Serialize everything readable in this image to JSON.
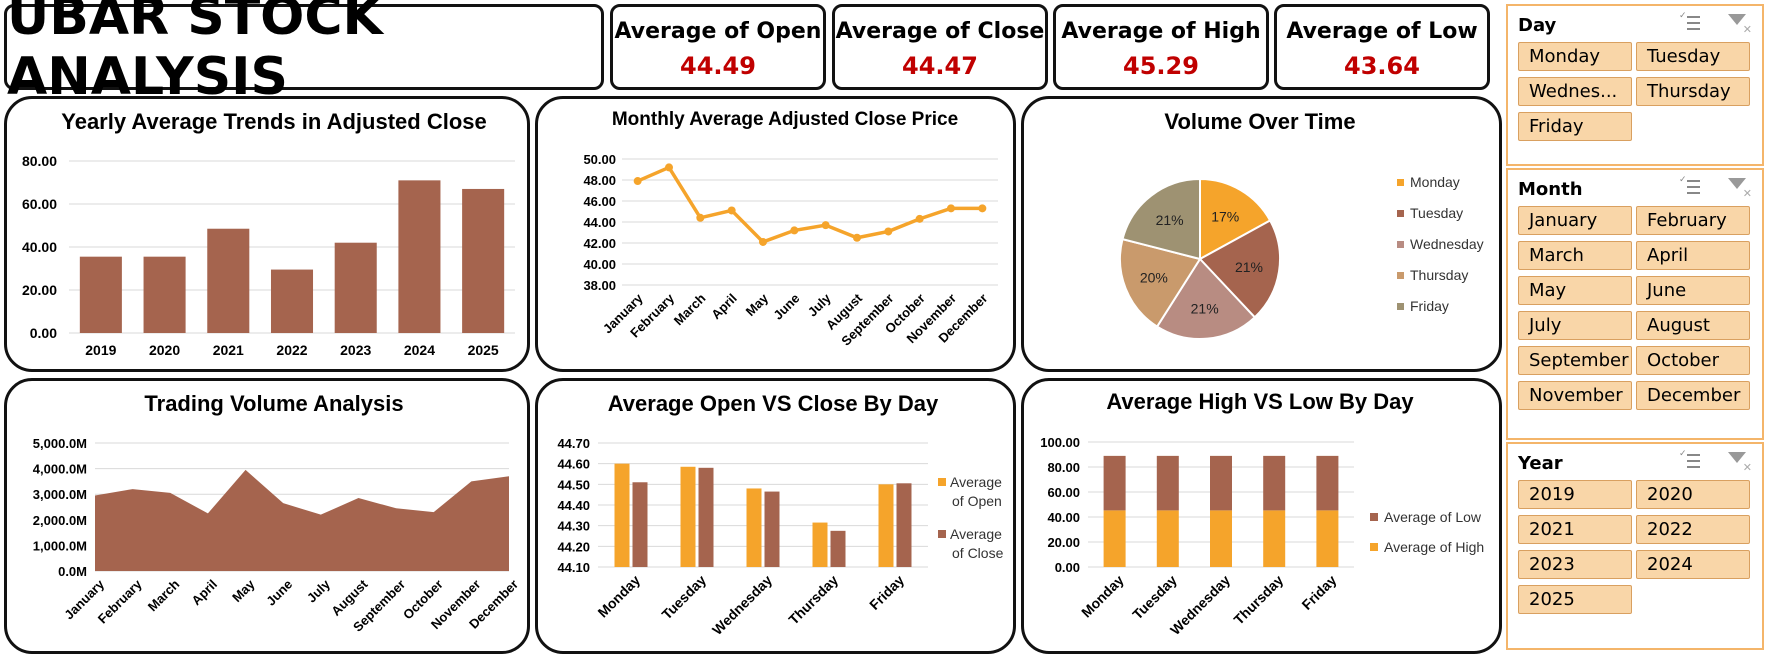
{
  "header": {
    "title": "UBAR STOCK ANALYSIS"
  },
  "kpis": [
    {
      "label": "Average of Open",
      "value": "44.49"
    },
    {
      "label": "Average of Close",
      "value": "44.47"
    },
    {
      "label": "Average of High",
      "value": "45.29"
    },
    {
      "label": "Average of Low",
      "value": "43.64"
    }
  ],
  "colors": {
    "bar_brown": "#a5644e",
    "orange": "#f5a42b",
    "kpi_red": "#c00000",
    "slicer_fill": "#f9d6a8",
    "slicer_border": "#f4b56a"
  },
  "chart_data": [
    {
      "id": "yearly",
      "type": "bar",
      "title": "Yearly Average Trends in Adjusted Close",
      "categories": [
        "2019",
        "2020",
        "2021",
        "2022",
        "2023",
        "2024",
        "2025"
      ],
      "values": [
        35.5,
        35.5,
        48.5,
        29.5,
        42,
        71,
        67
      ],
      "ylim": [
        0,
        80
      ],
      "yticks": [
        "0.00",
        "20.00",
        "40.00",
        "60.00",
        "80.00"
      ],
      "grid": true
    },
    {
      "id": "monthly",
      "type": "line",
      "title": "Monthly Average Adjusted Close Price",
      "categories": [
        "January",
        "February",
        "March",
        "April",
        "May",
        "June",
        "July",
        "August",
        "September",
        "October",
        "November",
        "December"
      ],
      "values": [
        47.9,
        49.2,
        44.4,
        45.1,
        42.1,
        43.2,
        43.7,
        42.5,
        43.1,
        44.3,
        45.3,
        45.3
      ],
      "ylim": [
        38,
        50
      ],
      "yticks": [
        "38.00",
        "40.00",
        "42.00",
        "44.00",
        "46.00",
        "48.00",
        "50.00"
      ],
      "grid": true
    },
    {
      "id": "volume_pie",
      "type": "pie",
      "title": "Volume Over Time",
      "categories": [
        "Monday",
        "Tuesday",
        "Wednesday",
        "Thursday",
        "Friday"
      ],
      "values": [
        17,
        21,
        21,
        20,
        21
      ],
      "labels": [
        "17%",
        "21%",
        "21%",
        "20%",
        "21%"
      ],
      "colors": [
        "#f5a42b",
        "#a5644e",
        "#b88c82",
        "#c99a6c",
        "#9e9272"
      ],
      "legend": "right"
    },
    {
      "id": "trading_volume",
      "type": "area",
      "title": "Trading Volume Analysis",
      "categories": [
        "January",
        "February",
        "March",
        "April",
        "May",
        "June",
        "July",
        "August",
        "September",
        "October",
        "November",
        "December"
      ],
      "values": [
        2950,
        3200,
        3050,
        2250,
        3950,
        2650,
        2200,
        2850,
        2450,
        2300,
        3500,
        3700
      ],
      "unit": "M",
      "ylim": [
        0,
        5000
      ],
      "yticks": [
        "0.0M",
        "1,000.0M",
        "2,000.0M",
        "3,000.0M",
        "4,000.0M",
        "5,000.0M"
      ],
      "grid": true
    },
    {
      "id": "open_close",
      "type": "bar",
      "title": "Average Open VS Close By Day",
      "categories": [
        "Monday",
        "Tuesday",
        "Wednesday",
        "Thursday",
        "Friday"
      ],
      "series": [
        {
          "name": "Average of Open",
          "values": [
            44.6,
            44.585,
            44.48,
            44.315,
            44.5
          ],
          "color": "#f5a42b"
        },
        {
          "name": "Average of Close",
          "values": [
            44.51,
            44.58,
            44.465,
            44.275,
            44.505
          ],
          "color": "#a5644e"
        }
      ],
      "ylim": [
        44.1,
        44.7
      ],
      "yticks": [
        "44.10",
        "44.20",
        "44.30",
        "44.40",
        "44.50",
        "44.60",
        "44.70"
      ],
      "legend_lines": [
        [
          "Average",
          "of Open"
        ],
        [
          "Average",
          "of Close"
        ]
      ],
      "grid": true
    },
    {
      "id": "high_low",
      "type": "bar",
      "stacked": true,
      "title": "Average High VS Low By Day",
      "categories": [
        "Monday",
        "Tuesday",
        "Wednesday",
        "Thursday",
        "Friday"
      ],
      "series": [
        {
          "name": "Average of High",
          "values": [
            45.3,
            45.3,
            45.3,
            45.3,
            45.3
          ],
          "color": "#f5a42b"
        },
        {
          "name": "Average of Low",
          "values": [
            43.6,
            43.6,
            43.6,
            43.6,
            43.6
          ],
          "color": "#a5644e"
        }
      ],
      "ylim": [
        0,
        100
      ],
      "yticks": [
        "0.00",
        "20.00",
        "40.00",
        "60.00",
        "80.00",
        "100.00"
      ],
      "grid": true
    }
  ],
  "slicers": [
    {
      "title": "Day",
      "items": [
        "Monday",
        "Tuesday",
        "Wednes...",
        "Thursday",
        "Friday"
      ]
    },
    {
      "title": "Month",
      "items": [
        "January",
        "February",
        "March",
        "April",
        "May",
        "June",
        "July",
        "August",
        "September",
        "October",
        "November",
        "December"
      ]
    },
    {
      "title": "Year",
      "items": [
        "2019",
        "2020",
        "2021",
        "2022",
        "2023",
        "2024",
        "2025"
      ]
    }
  ]
}
